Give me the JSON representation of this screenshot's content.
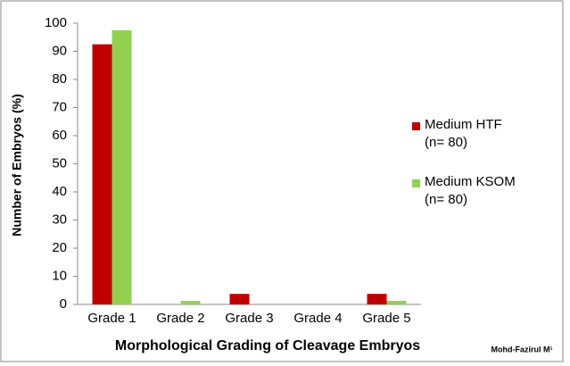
{
  "chart_data": {
    "type": "bar",
    "categories": [
      "Grade 1",
      "Grade 2",
      "Grade 3",
      "Grade 4",
      "Grade 5"
    ],
    "series": [
      {
        "name": "Medium HTF\n(n= 80)",
        "color": "#c00000",
        "values": [
          92.5,
          0,
          3.75,
          0,
          3.75
        ]
      },
      {
        "name": "Medium KSOM\n(n= 80)",
        "color": "#92d050",
        "values": [
          97.5,
          1.25,
          0,
          0,
          1.25
        ]
      }
    ],
    "x_label": "Morphological Grading of Cleavage Embryos",
    "y_label": "Number of Embryos (%)",
    "annotation": "Mohd-Fazirul M¹",
    "ylim": [
      0,
      100
    ],
    "yticks": [
      0,
      10,
      20,
      30,
      40,
      50,
      60,
      70,
      80,
      90,
      100
    ],
    "grid": false,
    "legend": "right"
  }
}
